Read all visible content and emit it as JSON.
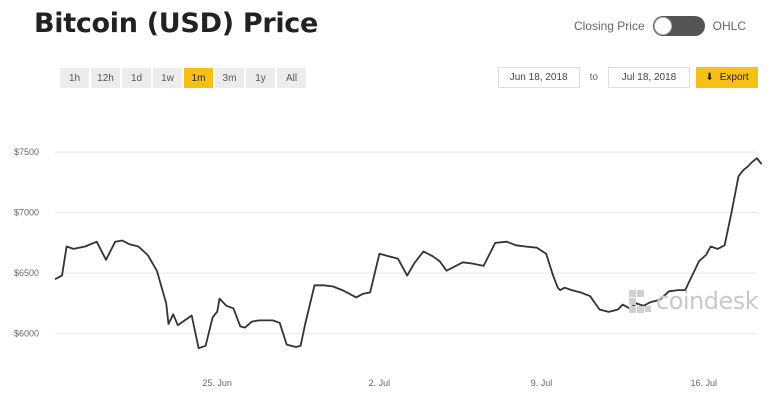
{
  "header": {
    "title": "Bitcoin (USD) Price",
    "toggle_left_label": "Closing Price",
    "toggle_right_label": "OHLC"
  },
  "ranges": [
    {
      "label": "1h",
      "active": false
    },
    {
      "label": "12h",
      "active": false
    },
    {
      "label": "1d",
      "active": false
    },
    {
      "label": "1w",
      "active": false
    },
    {
      "label": "1m",
      "active": true
    },
    {
      "label": "3m",
      "active": false
    },
    {
      "label": "1y",
      "active": false
    },
    {
      "label": "All",
      "active": false
    }
  ],
  "dates": {
    "start": "Jun 18, 2018",
    "separator": "to",
    "end": "Jul 18, 2018",
    "export_label": "Export"
  },
  "watermark": "coindesk",
  "colors": {
    "accent": "#f8c015",
    "line": "#333333",
    "toggle": "#555555"
  },
  "chart_data": {
    "type": "line",
    "title": "Bitcoin (USD) Price",
    "xlabel": "",
    "ylabel": "",
    "x_ticks": [
      "25. Jun",
      "2. Jul",
      "9. Jul",
      "16. Jul"
    ],
    "x_tick_days": [
      25,
      32,
      39,
      46
    ],
    "y_ticks": [
      "$6000",
      "$6500",
      "$7000",
      "$7500"
    ],
    "y_tick_values": [
      6000,
      6500,
      7000,
      7500
    ],
    "xlim": [
      "2018-06-18",
      "2018-07-18"
    ],
    "ylim": [
      5700,
      7600
    ],
    "grid": true,
    "series": [
      {
        "x": [
          18.0,
          18.3,
          18.5,
          18.8,
          19.3,
          19.8,
          20.2,
          20.6,
          20.9,
          21.2,
          21.6,
          22.0,
          22.4,
          22.8,
          22.9,
          23.1,
          23.3,
          23.6,
          23.9,
          24.2,
          24.5,
          24.8,
          24.9,
          25.0,
          25.1,
          25.4,
          25.7,
          26.0,
          26.2,
          26.5,
          26.8,
          27.1,
          27.4,
          27.7,
          28.0,
          28.4,
          28.6,
          28.8,
          29.2,
          29.6,
          30.0,
          30.4,
          30.7,
          31.0,
          31.3,
          31.6,
          32.0,
          32.4,
          32.8,
          33.2,
          33.5,
          33.9,
          34.3,
          34.6,
          34.9,
          35.3,
          35.6,
          36.0,
          36.5,
          37.0,
          37.5,
          37.9,
          38.3,
          38.8,
          39.2,
          39.5,
          39.7,
          39.8,
          40.0,
          40.3,
          40.7,
          41.1,
          41.5,
          41.9,
          42.3,
          42.5,
          42.8,
          43.1,
          43.4,
          43.7,
          44.1,
          44.5,
          44.9,
          45.2,
          45.5,
          45.8,
          46.1,
          46.3,
          46.6,
          46.9,
          47.2,
          47.5,
          47.7,
          47.9,
          48.1,
          48.3,
          48.5
        ],
        "y": [
          6450,
          6480,
          6720,
          6700,
          6720,
          6760,
          6610,
          6760,
          6770,
          6740,
          6720,
          6650,
          6520,
          6250,
          6080,
          6160,
          6070,
          6110,
          6150,
          5880,
          5900,
          6130,
          6160,
          6180,
          6290,
          6230,
          6210,
          6060,
          6050,
          6100,
          6110,
          6110,
          6110,
          6090,
          5910,
          5890,
          5900,
          6080,
          6400,
          6400,
          6390,
          6360,
          6330,
          6300,
          6330,
          6340,
          6660,
          6640,
          6620,
          6480,
          6580,
          6680,
          6640,
          6600,
          6520,
          6560,
          6590,
          6580,
          6560,
          6750,
          6760,
          6730,
          6720,
          6710,
          6660,
          6480,
          6380,
          6360,
          6380,
          6360,
          6340,
          6310,
          6200,
          6180,
          6200,
          6240,
          6210,
          6250,
          6230,
          6260,
          6280,
          6350,
          6360,
          6360,
          6480,
          6600,
          6650,
          6720,
          6700,
          6730,
          7000,
          7300,
          7350,
          7380,
          7420,
          7450,
          7400
        ]
      }
    ]
  }
}
